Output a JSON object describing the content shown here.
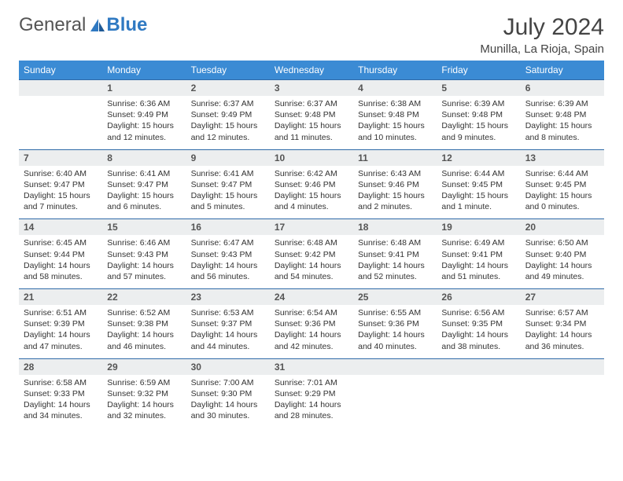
{
  "brand": {
    "part1": "General",
    "part2": "Blue"
  },
  "title": "July 2024",
  "location": "Munilla, La Rioja, Spain",
  "colors": {
    "header_bg": "#3b8bd4",
    "header_text": "#ffffff",
    "daynum_bg": "#eceeef",
    "rule": "#2f6aa8",
    "logo_blue": "#2f79c2",
    "text": "#333333",
    "title_text": "#444444",
    "background": "#ffffff"
  },
  "typography": {
    "title_fontsize": 30,
    "location_fontsize": 15,
    "weekday_fontsize": 12,
    "daynum_fontsize": 12,
    "cell_fontsize": 10.5
  },
  "weekdays": [
    "Sunday",
    "Monday",
    "Tuesday",
    "Wednesday",
    "Thursday",
    "Friday",
    "Saturday"
  ],
  "weeks": [
    [
      {
        "n": "",
        "sr": "",
        "ss": "",
        "dl": ""
      },
      {
        "n": "1",
        "sr": "6:36 AM",
        "ss": "9:49 PM",
        "dl": "15 hours and 12 minutes."
      },
      {
        "n": "2",
        "sr": "6:37 AM",
        "ss": "9:49 PM",
        "dl": "15 hours and 12 minutes."
      },
      {
        "n": "3",
        "sr": "6:37 AM",
        "ss": "9:48 PM",
        "dl": "15 hours and 11 minutes."
      },
      {
        "n": "4",
        "sr": "6:38 AM",
        "ss": "9:48 PM",
        "dl": "15 hours and 10 minutes."
      },
      {
        "n": "5",
        "sr": "6:39 AM",
        "ss": "9:48 PM",
        "dl": "15 hours and 9 minutes."
      },
      {
        "n": "6",
        "sr": "6:39 AM",
        "ss": "9:48 PM",
        "dl": "15 hours and 8 minutes."
      }
    ],
    [
      {
        "n": "7",
        "sr": "6:40 AM",
        "ss": "9:47 PM",
        "dl": "15 hours and 7 minutes."
      },
      {
        "n": "8",
        "sr": "6:41 AM",
        "ss": "9:47 PM",
        "dl": "15 hours and 6 minutes."
      },
      {
        "n": "9",
        "sr": "6:41 AM",
        "ss": "9:47 PM",
        "dl": "15 hours and 5 minutes."
      },
      {
        "n": "10",
        "sr": "6:42 AM",
        "ss": "9:46 PM",
        "dl": "15 hours and 4 minutes."
      },
      {
        "n": "11",
        "sr": "6:43 AM",
        "ss": "9:46 PM",
        "dl": "15 hours and 2 minutes."
      },
      {
        "n": "12",
        "sr": "6:44 AM",
        "ss": "9:45 PM",
        "dl": "15 hours and 1 minute."
      },
      {
        "n": "13",
        "sr": "6:44 AM",
        "ss": "9:45 PM",
        "dl": "15 hours and 0 minutes."
      }
    ],
    [
      {
        "n": "14",
        "sr": "6:45 AM",
        "ss": "9:44 PM",
        "dl": "14 hours and 58 minutes."
      },
      {
        "n": "15",
        "sr": "6:46 AM",
        "ss": "9:43 PM",
        "dl": "14 hours and 57 minutes."
      },
      {
        "n": "16",
        "sr": "6:47 AM",
        "ss": "9:43 PM",
        "dl": "14 hours and 56 minutes."
      },
      {
        "n": "17",
        "sr": "6:48 AM",
        "ss": "9:42 PM",
        "dl": "14 hours and 54 minutes."
      },
      {
        "n": "18",
        "sr": "6:48 AM",
        "ss": "9:41 PM",
        "dl": "14 hours and 52 minutes."
      },
      {
        "n": "19",
        "sr": "6:49 AM",
        "ss": "9:41 PM",
        "dl": "14 hours and 51 minutes."
      },
      {
        "n": "20",
        "sr": "6:50 AM",
        "ss": "9:40 PM",
        "dl": "14 hours and 49 minutes."
      }
    ],
    [
      {
        "n": "21",
        "sr": "6:51 AM",
        "ss": "9:39 PM",
        "dl": "14 hours and 47 minutes."
      },
      {
        "n": "22",
        "sr": "6:52 AM",
        "ss": "9:38 PM",
        "dl": "14 hours and 46 minutes."
      },
      {
        "n": "23",
        "sr": "6:53 AM",
        "ss": "9:37 PM",
        "dl": "14 hours and 44 minutes."
      },
      {
        "n": "24",
        "sr": "6:54 AM",
        "ss": "9:36 PM",
        "dl": "14 hours and 42 minutes."
      },
      {
        "n": "25",
        "sr": "6:55 AM",
        "ss": "9:36 PM",
        "dl": "14 hours and 40 minutes."
      },
      {
        "n": "26",
        "sr": "6:56 AM",
        "ss": "9:35 PM",
        "dl": "14 hours and 38 minutes."
      },
      {
        "n": "27",
        "sr": "6:57 AM",
        "ss": "9:34 PM",
        "dl": "14 hours and 36 minutes."
      }
    ],
    [
      {
        "n": "28",
        "sr": "6:58 AM",
        "ss": "9:33 PM",
        "dl": "14 hours and 34 minutes."
      },
      {
        "n": "29",
        "sr": "6:59 AM",
        "ss": "9:32 PM",
        "dl": "14 hours and 32 minutes."
      },
      {
        "n": "30",
        "sr": "7:00 AM",
        "ss": "9:30 PM",
        "dl": "14 hours and 30 minutes."
      },
      {
        "n": "31",
        "sr": "7:01 AM",
        "ss": "9:29 PM",
        "dl": "14 hours and 28 minutes."
      },
      {
        "n": "",
        "sr": "",
        "ss": "",
        "dl": ""
      },
      {
        "n": "",
        "sr": "",
        "ss": "",
        "dl": ""
      },
      {
        "n": "",
        "sr": "",
        "ss": "",
        "dl": ""
      }
    ]
  ],
  "labels": {
    "sunrise": "Sunrise:",
    "sunset": "Sunset:",
    "daylight": "Daylight:"
  }
}
